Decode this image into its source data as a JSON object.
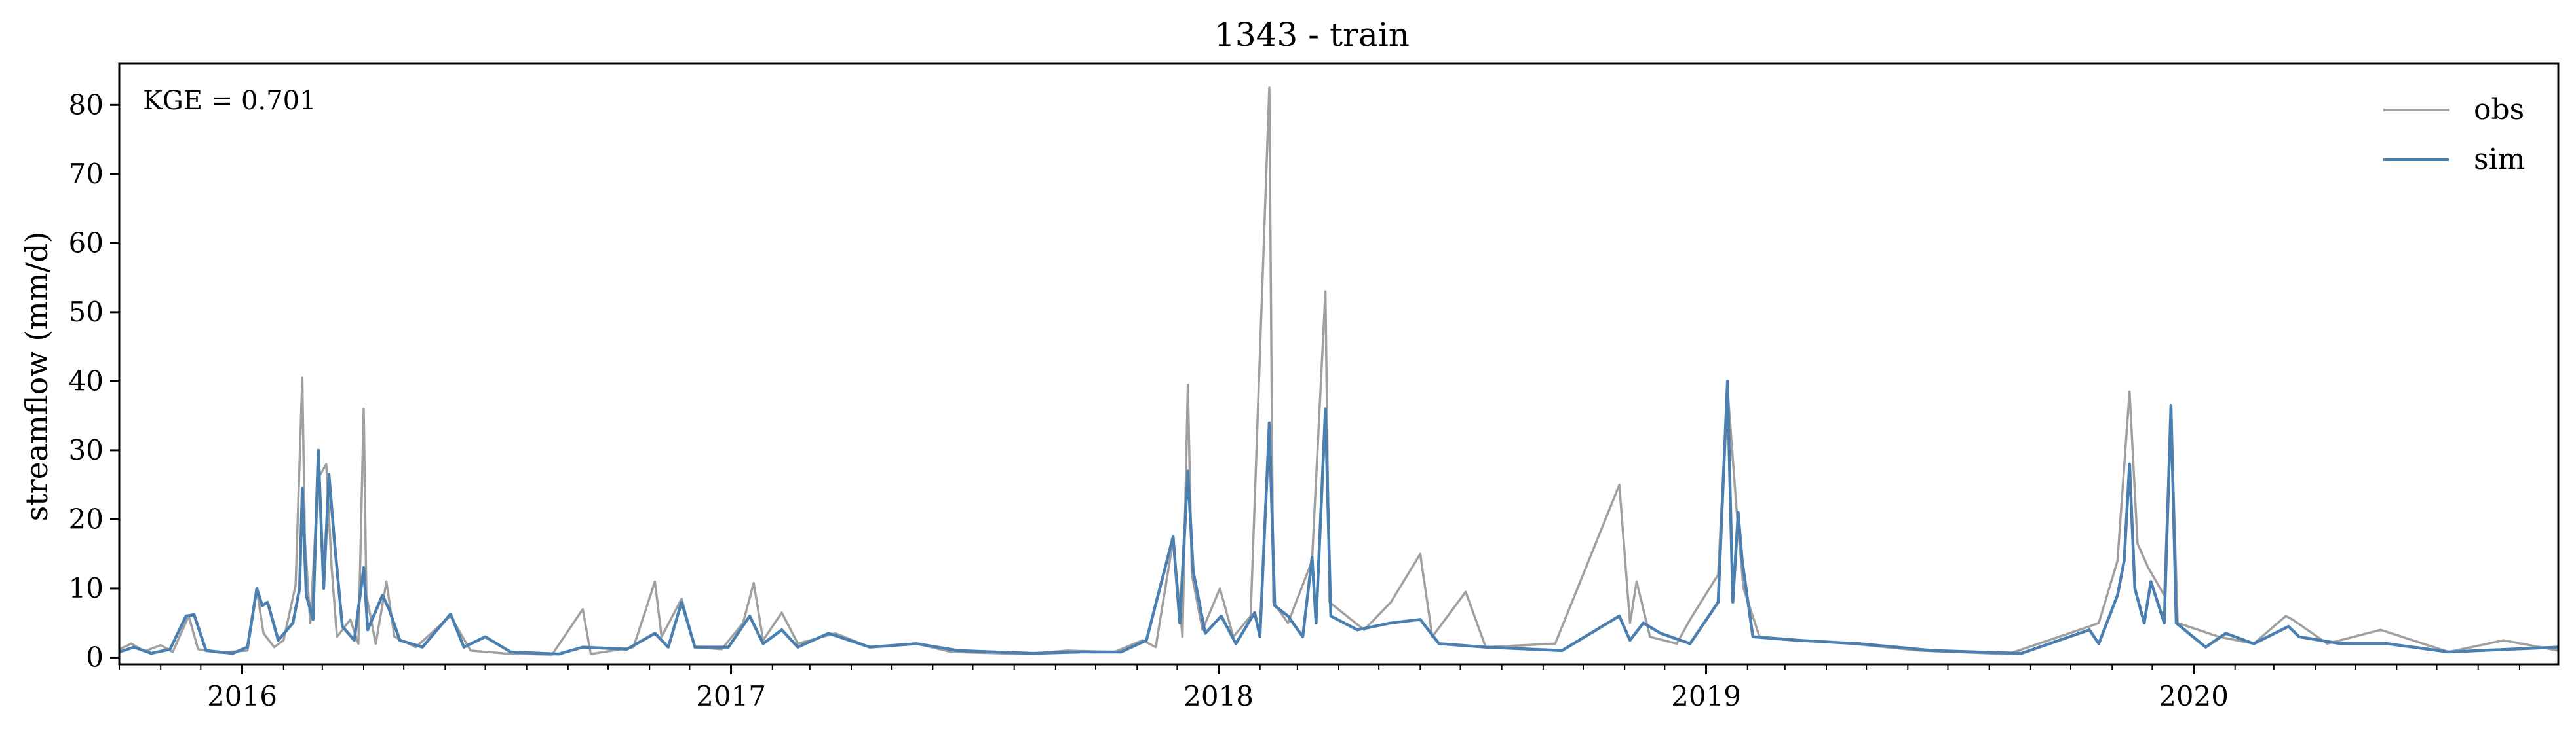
{
  "chart_data": {
    "type": "line",
    "title": "1343 - train",
    "xlabel": "",
    "ylabel": "streamflow (mm/d)",
    "annotation": "KGE = 0.701",
    "x_range": [
      "2015-10-01",
      "2020-09-30"
    ],
    "ylim": [
      -1,
      86
    ],
    "yticks": [
      0,
      10,
      20,
      30,
      40,
      50,
      60,
      70,
      80
    ],
    "xticks": [
      "2016",
      "2017",
      "2018",
      "2019",
      "2020"
    ],
    "grid": false,
    "legend": "top-right",
    "series": [
      {
        "name": "obs",
        "color": "#a0a0a0",
        "points": [
          [
            "2015-10-01",
            1.2
          ],
          [
            "2015-10-10",
            2.0
          ],
          [
            "2015-10-20",
            0.9
          ],
          [
            "2015-11-01",
            1.8
          ],
          [
            "2015-11-10",
            0.8
          ],
          [
            "2015-11-22",
            6.0
          ],
          [
            "2015-11-29",
            1.2
          ],
          [
            "2015-12-15",
            0.7
          ],
          [
            "2016-01-05",
            1.0
          ],
          [
            "2016-01-12",
            9.8
          ],
          [
            "2016-01-17",
            3.5
          ],
          [
            "2016-01-25",
            1.5
          ],
          [
            "2016-02-01",
            2.5
          ],
          [
            "2016-02-10",
            10.5
          ],
          [
            "2016-02-15",
            40.5
          ],
          [
            "2016-02-17",
            17.0
          ],
          [
            "2016-02-21",
            5.0
          ],
          [
            "2016-02-27",
            26.0
          ],
          [
            "2016-03-04",
            28.0
          ],
          [
            "2016-03-08",
            13.0
          ],
          [
            "2016-03-12",
            3.0
          ],
          [
            "2016-03-22",
            5.5
          ],
          [
            "2016-03-28",
            2.0
          ],
          [
            "2016-04-01",
            36.0
          ],
          [
            "2016-04-03",
            9.0
          ],
          [
            "2016-04-10",
            2.0
          ],
          [
            "2016-04-18",
            11.0
          ],
          [
            "2016-04-24",
            3.0
          ],
          [
            "2016-05-10",
            1.5
          ],
          [
            "2016-06-05",
            6.0
          ],
          [
            "2016-06-20",
            1.0
          ],
          [
            "2016-07-15",
            0.6
          ],
          [
            "2016-08-20",
            0.4
          ],
          [
            "2016-09-12",
            7.0
          ],
          [
            "2016-09-18",
            0.5
          ],
          [
            "2016-10-20",
            1.5
          ],
          [
            "2016-11-05",
            11.0
          ],
          [
            "2016-11-10",
            3.0
          ],
          [
            "2016-11-25",
            8.5
          ],
          [
            "2016-12-05",
            1.5
          ],
          [
            "2016-12-25",
            1.2
          ],
          [
            "2017-01-10",
            5.0
          ],
          [
            "2017-01-18",
            10.8
          ],
          [
            "2017-01-25",
            2.5
          ],
          [
            "2017-02-08",
            6.5
          ],
          [
            "2017-02-20",
            2.0
          ],
          [
            "2017-03-20",
            3.5
          ],
          [
            "2017-04-15",
            1.5
          ],
          [
            "2017-05-20",
            2.0
          ],
          [
            "2017-06-15",
            0.8
          ],
          [
            "2017-08-10",
            0.5
          ],
          [
            "2017-09-10",
            1.0
          ],
          [
            "2017-10-15",
            0.8
          ],
          [
            "2017-11-05",
            2.5
          ],
          [
            "2017-11-15",
            1.5
          ],
          [
            "2017-11-28",
            17.0
          ],
          [
            "2017-12-05",
            3.0
          ],
          [
            "2017-12-09",
            39.5
          ],
          [
            "2017-12-12",
            12.0
          ],
          [
            "2017-12-20",
            4.0
          ],
          [
            "2018-01-02",
            10.0
          ],
          [
            "2018-01-12",
            3.0
          ],
          [
            "2018-01-25",
            6.0
          ],
          [
            "2018-02-08",
            82.5
          ],
          [
            "2018-02-11",
            8.0
          ],
          [
            "2018-02-22",
            5.0
          ],
          [
            "2018-03-12",
            14.0
          ],
          [
            "2018-03-22",
            53.0
          ],
          [
            "2018-03-25",
            8.0
          ],
          [
            "2018-04-20",
            4.0
          ],
          [
            "2018-05-10",
            8.0
          ],
          [
            "2018-06-01",
            15.0
          ],
          [
            "2018-06-10",
            3.0
          ],
          [
            "2018-07-05",
            9.5
          ],
          [
            "2018-07-20",
            1.5
          ],
          [
            "2018-09-10",
            2.0
          ],
          [
            "2018-10-28",
            25.0
          ],
          [
            "2018-11-05",
            5.0
          ],
          [
            "2018-11-10",
            11.0
          ],
          [
            "2018-11-20",
            3.0
          ],
          [
            "2018-12-10",
            2.0
          ],
          [
            "2018-12-20",
            5.5
          ],
          [
            "2019-01-10",
            12.0
          ],
          [
            "2019-01-17",
            39.0
          ],
          [
            "2019-01-24",
            21.0
          ],
          [
            "2019-01-29",
            10.0
          ],
          [
            "2019-02-10",
            3.0
          ],
          [
            "2019-03-15",
            2.5
          ],
          [
            "2019-04-20",
            2.0
          ],
          [
            "2019-06-10",
            1.0
          ],
          [
            "2019-08-15",
            0.5
          ],
          [
            "2019-10-15",
            4.5
          ],
          [
            "2019-10-22",
            5.0
          ],
          [
            "2019-11-05",
            14.0
          ],
          [
            "2019-11-14",
            38.5
          ],
          [
            "2019-11-20",
            16.5
          ],
          [
            "2019-11-28",
            13.0
          ],
          [
            "2019-12-10",
            9.0
          ],
          [
            "2019-12-15",
            36.0
          ],
          [
            "2019-12-20",
            5.0
          ],
          [
            "2020-01-20",
            3.0
          ],
          [
            "2020-02-15",
            2.0
          ],
          [
            "2020-03-10",
            6.0
          ],
          [
            "2020-03-15",
            5.5
          ],
          [
            "2020-04-10",
            2.0
          ],
          [
            "2020-05-20",
            4.0
          ],
          [
            "2020-07-10",
            0.8
          ],
          [
            "2020-08-20",
            2.5
          ],
          [
            "2020-09-30",
            1.0
          ]
        ]
      },
      {
        "name": "sim",
        "color": "#4a7fb0",
        "points": [
          [
            "2015-10-01",
            0.8
          ],
          [
            "2015-10-12",
            1.5
          ],
          [
            "2015-10-25",
            0.6
          ],
          [
            "2015-11-08",
            1.2
          ],
          [
            "2015-11-20",
            6.0
          ],
          [
            "2015-11-26",
            6.2
          ],
          [
            "2015-12-05",
            1.0
          ],
          [
            "2015-12-25",
            0.6
          ],
          [
            "2016-01-05",
            1.5
          ],
          [
            "2016-01-12",
            10.0
          ],
          [
            "2016-01-16",
            7.5
          ],
          [
            "2016-01-20",
            8.0
          ],
          [
            "2016-01-28",
            2.5
          ],
          [
            "2016-02-08",
            5.0
          ],
          [
            "2016-02-13",
            10.0
          ],
          [
            "2016-02-15",
            24.5
          ],
          [
            "2016-02-18",
            9.0
          ],
          [
            "2016-02-23",
            5.5
          ],
          [
            "2016-02-27",
            30.0
          ],
          [
            "2016-03-02",
            10.0
          ],
          [
            "2016-03-06",
            26.5
          ],
          [
            "2016-03-10",
            17.0
          ],
          [
            "2016-03-16",
            4.5
          ],
          [
            "2016-03-25",
            2.5
          ],
          [
            "2016-04-01",
            13.0
          ],
          [
            "2016-04-04",
            4.0
          ],
          [
            "2016-04-15",
            9.0
          ],
          [
            "2016-04-20",
            7.0
          ],
          [
            "2016-04-28",
            2.5
          ],
          [
            "2016-05-15",
            1.5
          ],
          [
            "2016-06-05",
            6.3
          ],
          [
            "2016-06-15",
            1.5
          ],
          [
            "2016-07-01",
            3.0
          ],
          [
            "2016-07-20",
            0.8
          ],
          [
            "2016-08-25",
            0.5
          ],
          [
            "2016-09-12",
            1.5
          ],
          [
            "2016-10-15",
            1.2
          ],
          [
            "2016-11-05",
            3.5
          ],
          [
            "2016-11-15",
            1.5
          ],
          [
            "2016-11-25",
            8.0
          ],
          [
            "2016-12-05",
            1.5
          ],
          [
            "2016-12-30",
            1.5
          ],
          [
            "2017-01-15",
            6.0
          ],
          [
            "2017-01-25",
            2.0
          ],
          [
            "2017-02-08",
            4.0
          ],
          [
            "2017-02-20",
            1.5
          ],
          [
            "2017-03-15",
            3.5
          ],
          [
            "2017-04-15",
            1.5
          ],
          [
            "2017-05-20",
            2.0
          ],
          [
            "2017-06-20",
            1.0
          ],
          [
            "2017-08-15",
            0.6
          ],
          [
            "2017-09-20",
            0.8
          ],
          [
            "2017-10-20",
            0.8
          ],
          [
            "2017-11-08",
            2.5
          ],
          [
            "2017-11-28",
            17.5
          ],
          [
            "2017-12-03",
            5.0
          ],
          [
            "2017-12-09",
            27.0
          ],
          [
            "2017-12-13",
            12.5
          ],
          [
            "2017-12-22",
            3.5
          ],
          [
            "2018-01-03",
            6.0
          ],
          [
            "2018-01-14",
            2.0
          ],
          [
            "2018-01-28",
            6.5
          ],
          [
            "2018-02-01",
            3.0
          ],
          [
            "2018-02-08",
            34.0
          ],
          [
            "2018-02-12",
            7.5
          ],
          [
            "2018-02-22",
            6.0
          ],
          [
            "2018-03-05",
            3.0
          ],
          [
            "2018-03-12",
            14.5
          ],
          [
            "2018-03-15",
            5.0
          ],
          [
            "2018-03-22",
            36.0
          ],
          [
            "2018-03-26",
            6.0
          ],
          [
            "2018-04-15",
            4.0
          ],
          [
            "2018-05-10",
            5.0
          ],
          [
            "2018-06-01",
            5.5
          ],
          [
            "2018-06-15",
            2.0
          ],
          [
            "2018-07-20",
            1.5
          ],
          [
            "2018-09-15",
            1.0
          ],
          [
            "2018-10-28",
            6.0
          ],
          [
            "2018-11-05",
            2.5
          ],
          [
            "2018-11-15",
            5.0
          ],
          [
            "2018-11-28",
            3.5
          ],
          [
            "2018-12-20",
            2.0
          ],
          [
            "2019-01-10",
            8.0
          ],
          [
            "2019-01-17",
            40.0
          ],
          [
            "2019-01-21",
            8.0
          ],
          [
            "2019-01-25",
            21.0
          ],
          [
            "2019-01-28",
            14.0
          ],
          [
            "2019-02-05",
            3.0
          ],
          [
            "2019-03-10",
            2.5
          ],
          [
            "2019-04-25",
            2.0
          ],
          [
            "2019-06-20",
            1.0
          ],
          [
            "2019-08-25",
            0.6
          ],
          [
            "2019-10-15",
            4.0
          ],
          [
            "2019-10-22",
            2.0
          ],
          [
            "2019-11-05",
            9.0
          ],
          [
            "2019-11-10",
            14.0
          ],
          [
            "2019-11-14",
            28.0
          ],
          [
            "2019-11-18",
            10.0
          ],
          [
            "2019-11-25",
            5.0
          ],
          [
            "2019-11-30",
            11.0
          ],
          [
            "2019-12-10",
            5.0
          ],
          [
            "2019-12-15",
            36.5
          ],
          [
            "2019-12-19",
            5.0
          ],
          [
            "2020-01-10",
            1.5
          ],
          [
            "2020-01-25",
            3.5
          ],
          [
            "2020-02-15",
            2.0
          ],
          [
            "2020-03-12",
            4.5
          ],
          [
            "2020-03-20",
            3.0
          ],
          [
            "2020-04-20",
            2.0
          ],
          [
            "2020-05-25",
            2.0
          ],
          [
            "2020-07-10",
            0.8
          ],
          [
            "2020-08-25",
            1.2
          ],
          [
            "2020-09-30",
            1.5
          ]
        ]
      }
    ]
  }
}
